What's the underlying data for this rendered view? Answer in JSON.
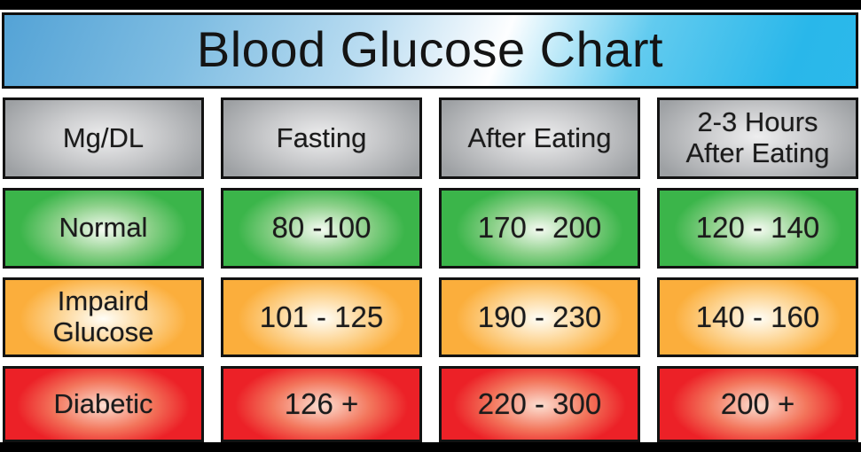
{
  "title": "Blood Glucose Chart",
  "table": {
    "headers": [
      "Mg/DL",
      "Fasting",
      "After Eating",
      "2-3 Hours\nAfter Eating"
    ],
    "rows": [
      {
        "label": "Normal",
        "values": [
          "80 -100",
          "170 - 200",
          "120 - 140"
        ]
      },
      {
        "label": "Impaird\nGlucose",
        "values": [
          "101 - 125",
          "190 - 230",
          "140 - 160"
        ]
      },
      {
        "label": "Diabetic",
        "values": [
          "126 +",
          "220 - 300",
          "200 +"
        ]
      }
    ]
  },
  "chart_data": {
    "type": "table",
    "title": "Blood Glucose Chart",
    "unit": "Mg/DL",
    "columns": [
      "Mg/DL",
      "Fasting",
      "After Eating",
      "2-3 Hours After Eating"
    ],
    "rows": [
      [
        "Normal",
        "80 -100",
        "170 - 200",
        "120 - 140"
      ],
      [
        "Impaird Glucose",
        "101 - 125",
        "190 - 230",
        "140 - 160"
      ],
      [
        "Diabetic",
        "126 +",
        "220 - 300",
        "200 +"
      ]
    ]
  },
  "colors": {
    "title_blue": "#29b7ea",
    "header_gray": "#9da0a3",
    "normal_green": "#3bb54a",
    "impaired_orange": "#fbae3c",
    "diabetic_red": "#ec2127",
    "frame_black": "#000000"
  }
}
